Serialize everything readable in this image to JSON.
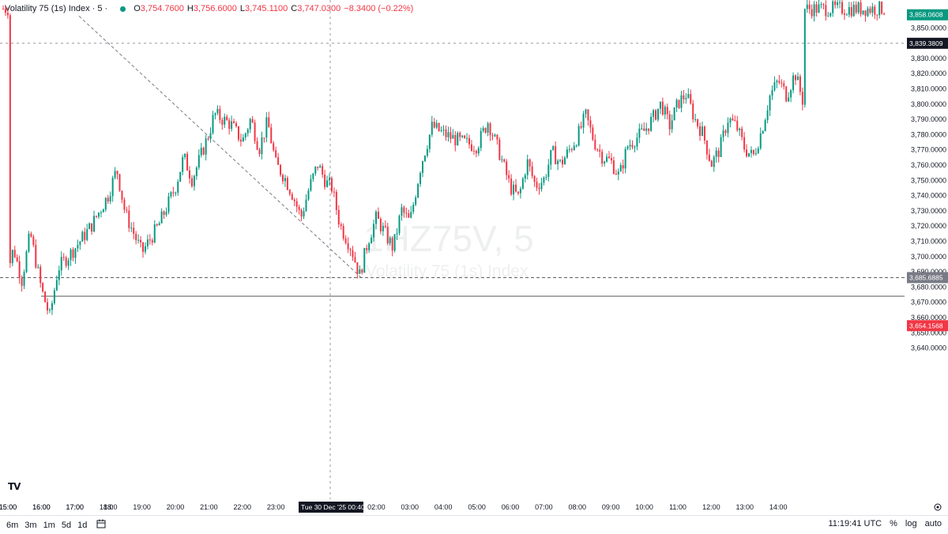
{
  "legend": {
    "title": "Volatility 75 (1s) Index · 5 ·",
    "o_label": "O",
    "o_value": "3,754.7600",
    "h_label": "H",
    "h_value": "3,756.6000",
    "l_label": "L",
    "l_value": "3,745.1100",
    "c_label": "C",
    "c_value": "3,747.0300",
    "change": "−8.3400 (−0.22%)"
  },
  "watermark": {
    "symbol": "1HZ75V, 5",
    "name": "Volatility 75 (1s) Index"
  },
  "price_labels": {
    "target": "3,858.0608",
    "crosshair": "3,839.3809",
    "entry": "3,685.6885",
    "stop": "3,654.1568"
  },
  "time_label": "Tue 30 Dec '25   00:40",
  "bottom": {
    "timeframes": [
      "6m",
      "3m",
      "1m",
      "5d",
      "1d"
    ],
    "clock": "11:19:41 UTC",
    "percent": "%",
    "log": "log",
    "auto": "auto"
  },
  "colors": {
    "up": "#089981",
    "down": "#f23645",
    "profit_zone": "#a6dbd0",
    "loss_zone": "#fcd7db"
  },
  "icons": [
    "date-range-icon",
    "settings-gear-icon",
    "tradingview-logo-icon"
  ],
  "chart_data": {
    "type": "candlestick",
    "y_axis_ticks": [
      3850,
      3840,
      3830,
      3820,
      3810,
      3800,
      3790,
      3780,
      3770,
      3760,
      3750,
      3740,
      3730,
      3720,
      3710,
      3700,
      3690,
      3680,
      3670,
      3660,
      3650,
      3640
    ],
    "y_tick_labels": [
      "3,850.0000",
      "3,840.0000",
      "3,830.0000",
      "3,820.0000",
      "3,810.0000",
      "3,800.0000",
      "3,790.0000",
      "3,780.0000",
      "3,770.0000",
      "3,760.0000",
      "3,750.0000",
      "3,740.0000",
      "3,730.0000",
      "3,720.0000",
      "3,710.0000",
      "3,700.0000",
      "3,690.0000",
      "3,680.0000",
      "3,670.0000",
      "3,660.0000",
      "3,650.0000",
      "3,640.0000"
    ],
    "x_tick_labels": [
      "15:00",
      "16:00",
      "17:00",
      "18:00",
      "19:00",
      "20:00",
      "21:00",
      "22:00",
      "23:00",
      "02:00",
      "03:00",
      "04:00",
      "05:00",
      "06:00",
      "07:00",
      "08:00",
      "09:00",
      "10:00",
      "11:00",
      "12:00",
      "13:00",
      "14:00",
      "15:00",
      "16:00",
      "17:00",
      "18:"
    ],
    "ylim": [
      3636,
      3862
    ],
    "price_path": [
      [
        "15:00",
        3690
      ],
      [
        "15:10",
        3705
      ],
      [
        "15:25",
        3684
      ],
      [
        "15:40",
        3715
      ],
      [
        "16:00",
        3678
      ],
      [
        "16:15",
        3660
      ],
      [
        "16:30",
        3692
      ],
      [
        "17:00",
        3705
      ],
      [
        "17:30",
        3720
      ],
      [
        "18:00",
        3740
      ],
      [
        "18:15",
        3757
      ],
      [
        "18:30",
        3728
      ],
      [
        "19:00",
        3702
      ],
      [
        "19:30",
        3720
      ],
      [
        "20:00",
        3745
      ],
      [
        "20:15",
        3765
      ],
      [
        "20:30",
        3750
      ],
      [
        "21:00",
        3780
      ],
      [
        "21:10",
        3793
      ],
      [
        "21:40",
        3786
      ],
      [
        "22:00",
        3775
      ],
      [
        "22:15",
        3790
      ],
      [
        "22:30",
        3770
      ],
      [
        "22:45",
        3788
      ],
      [
        "23:00",
        3760
      ],
      [
        "23:15",
        3752
      ],
      [
        "23:30",
        3740
      ],
      [
        "23:45",
        3725
      ],
      [
        "00:00",
        3745
      ],
      [
        "00:15",
        3760
      ],
      [
        "00:30",
        3748
      ],
      [
        "00:40",
        3745
      ],
      [
        "00:55",
        3720
      ],
      [
        "01:15",
        3705
      ],
      [
        "01:30",
        3687
      ],
      [
        "01:45",
        3710
      ],
      [
        "02:00",
        3725
      ],
      [
        "02:30",
        3705
      ],
      [
        "02:45",
        3730
      ],
      [
        "03:00",
        3722
      ],
      [
        "03:20",
        3760
      ],
      [
        "03:40",
        3785
      ],
      [
        "04:00",
        3780
      ],
      [
        "04:30",
        3775
      ],
      [
        "05:00",
        3772
      ],
      [
        "05:20",
        3788
      ],
      [
        "05:40",
        3768
      ],
      [
        "06:00",
        3745
      ],
      [
        "06:15",
        3738
      ],
      [
        "06:30",
        3762
      ],
      [
        "06:45",
        3746
      ],
      [
        "07:00",
        3750
      ],
      [
        "07:15",
        3768
      ],
      [
        "07:30",
        3760
      ],
      [
        "08:00",
        3778
      ],
      [
        "08:15",
        3792
      ],
      [
        "08:30",
        3775
      ],
      [
        "08:45",
        3765
      ],
      [
        "09:00",
        3762
      ],
      [
        "09:15",
        3752
      ],
      [
        "09:30",
        3772
      ],
      [
        "10:00",
        3782
      ],
      [
        "10:15",
        3790
      ],
      [
        "10:30",
        3800
      ],
      [
        "10:45",
        3785
      ],
      [
        "11:00",
        3800
      ],
      [
        "11:15",
        3806
      ],
      [
        "11:30",
        3790
      ],
      [
        "11:45",
        3780
      ],
      [
        "12:00",
        3760
      ],
      [
        "12:15",
        3770
      ],
      [
        "12:30",
        3790
      ],
      [
        "12:45",
        3785
      ],
      [
        "13:00",
        3770
      ],
      [
        "13:15",
        3765
      ],
      [
        "13:30",
        3782
      ],
      [
        "13:45",
        3805
      ],
      [
        "14:00",
        3815
      ],
      [
        "14:15",
        3805
      ],
      [
        "14:30",
        3820
      ],
      [
        "14:45",
        3800
      ],
      [
        "15:00",
        3795
      ],
      [
        "15:15",
        3805
      ],
      [
        "15:30",
        3797
      ],
      [
        "15:45",
        3815
      ],
      [
        "16:00",
        3808
      ],
      [
        "16:15",
        3806
      ],
      [
        "16:30",
        3822
      ],
      [
        "16:45",
        3840
      ],
      [
        "16:55",
        3832
      ],
      [
        "17:05",
        3855
      ],
      [
        "17:20",
        3862
      ]
    ],
    "last_visible_candle": {
      "open": 3754.76,
      "high": 3756.6,
      "low": 3745.11,
      "close": 3747.03
    },
    "long_position": {
      "entry": 3685.6885,
      "target": 3858.0608,
      "stop": 3654.1568,
      "start": "01:30",
      "end": "16:55"
    },
    "horizontal_line": 3673.5,
    "crosshair": {
      "price": 3839.3809,
      "time": "00:40"
    },
    "trend_line": {
      "from": [
        "01:30",
        3685.6885
      ],
      "to": [
        "17:05",
        3858.0608
      ]
    },
    "grid": false
  }
}
